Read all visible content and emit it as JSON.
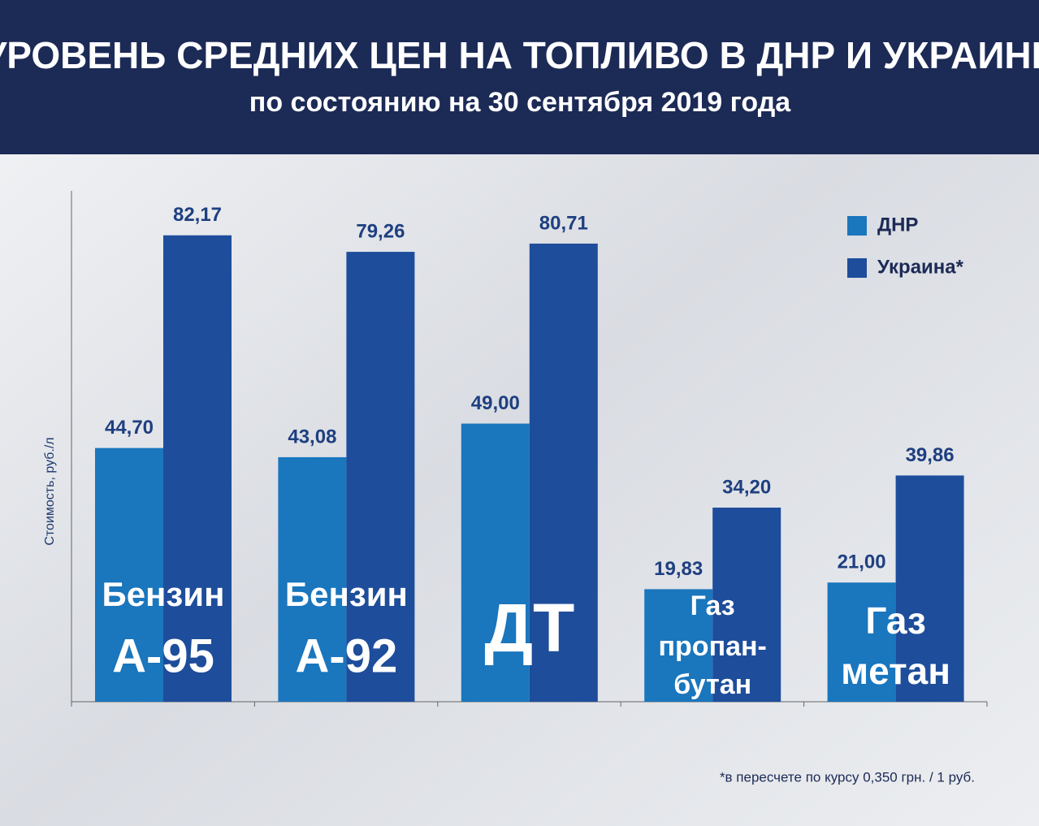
{
  "chart_data": {
    "type": "bar",
    "title": "УРОВЕНЬ СРЕДНИХ ЦЕН НА ТОПЛИВО В ДНР И УКРАИНЕ",
    "subtitle": "по состоянию на 30 сентября 2019 года",
    "y_label": "Стоимость,  руб./л",
    "footnote": "*в пересчете по курсу 0,350 грн. / 1 руб.",
    "categories": [
      [
        "Бензин",
        "А-95"
      ],
      [
        "Бензин",
        "А-92"
      ],
      [
        "ДТ"
      ],
      [
        "Газ",
        "пропан-",
        "бутан"
      ],
      [
        "Газ",
        "метан"
      ]
    ],
    "series": [
      {
        "name": "ДНР",
        "color": "#1a76bd",
        "values": [
          44.7,
          43.08,
          49.0,
          19.83,
          21.0
        ],
        "value_labels": [
          "44,70",
          "43,08",
          "49,00",
          "19,83",
          "21,00"
        ]
      },
      {
        "name": "Украина*",
        "color": "#1e4d9b",
        "values": [
          82.17,
          79.26,
          80.71,
          34.2,
          39.86
        ],
        "value_labels": [
          "82,17",
          "79,26",
          "80,71",
          "34,20",
          "39,86"
        ]
      }
    ],
    "ylim": [
      0,
      90
    ]
  }
}
